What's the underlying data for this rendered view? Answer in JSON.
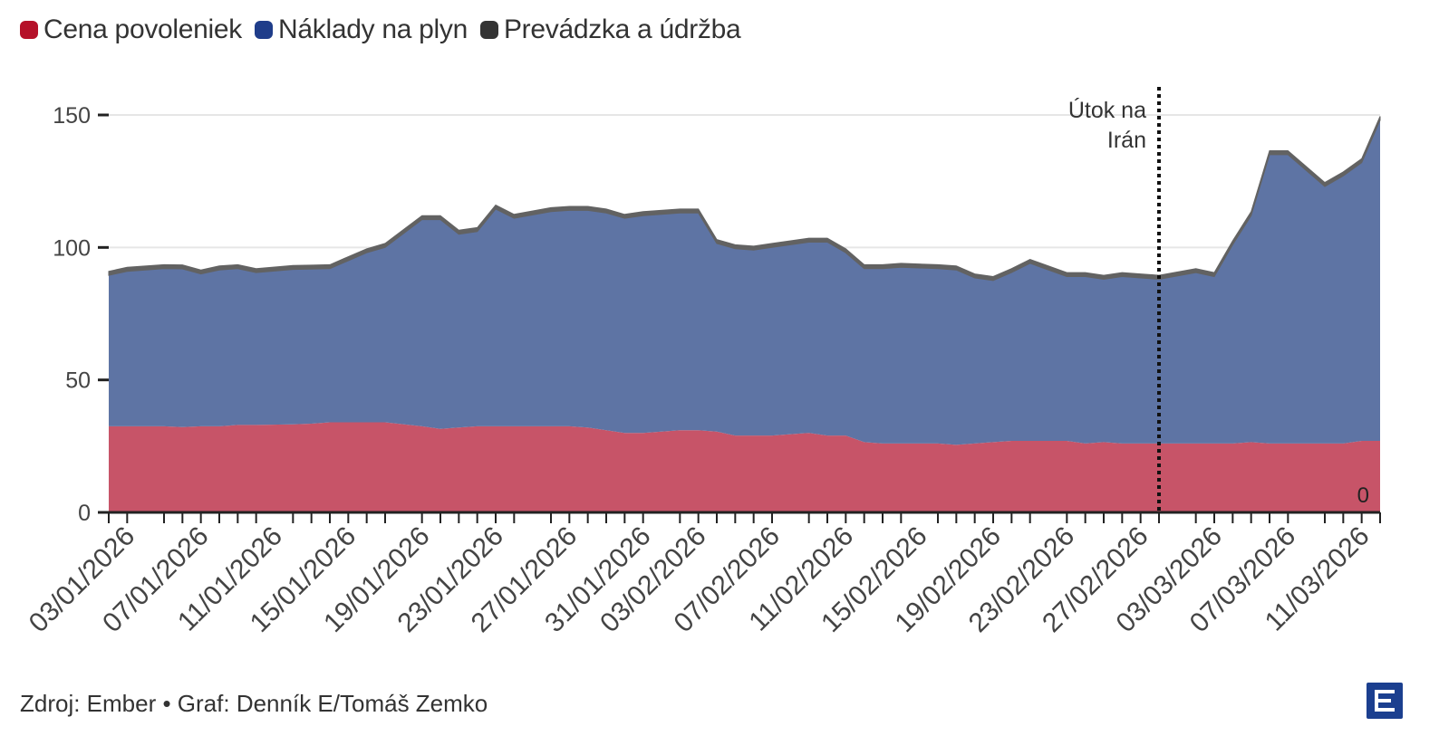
{
  "legend": {
    "items": [
      {
        "label": "Cena povoleniek",
        "color": "#b51129"
      },
      {
        "label": "Náklady na plyn",
        "color": "#1f3d8a"
      },
      {
        "label": "Prevádzka a údržba",
        "color": "#333333"
      }
    ]
  },
  "annotation": {
    "line1": "Útok na",
    "line2": "Irán",
    "date": "28/02/2026"
  },
  "end_label": "0",
  "source": "Zdroj: Ember • Graf: Denník E/Tomáš Zemko",
  "chart_data": {
    "type": "area",
    "stacked": true,
    "ylim": [
      0,
      160
    ],
    "yticks": [
      0,
      50,
      100,
      150
    ],
    "grid": true,
    "legend_position": "top-left",
    "colors": {
      "permits": "#c75468",
      "gas": "#5e74a4",
      "om": "#626262"
    },
    "x": [
      "02/01/2026",
      "03/01/2026",
      "05/01/2026",
      "06/01/2026",
      "07/01/2026",
      "08/01/2026",
      "09/01/2026",
      "10/01/2026",
      "12/01/2026",
      "13/01/2026",
      "14/01/2026",
      "15/01/2026",
      "16/01/2026",
      "17/01/2026",
      "19/01/2026",
      "20/01/2026",
      "21/01/2026",
      "22/01/2026",
      "23/01/2026",
      "24/01/2026",
      "26/01/2026",
      "27/01/2026",
      "28/01/2026",
      "29/01/2026",
      "30/01/2026",
      "31/01/2026",
      "02/02/2026",
      "03/02/2026",
      "04/02/2026",
      "05/02/2026",
      "06/02/2026",
      "07/02/2026",
      "09/02/2026",
      "10/02/2026",
      "11/02/2026",
      "12/02/2026",
      "13/02/2026",
      "14/02/2026",
      "16/02/2026",
      "17/02/2026",
      "18/02/2026",
      "19/02/2026",
      "20/02/2026",
      "21/02/2026",
      "23/02/2026",
      "24/02/2026",
      "25/02/2026",
      "26/02/2026",
      "27/02/2026",
      "28/02/2026",
      "02/03/2026",
      "03/03/2026",
      "04/03/2026",
      "05/03/2026",
      "06/03/2026",
      "07/03/2026",
      "09/03/2026",
      "10/03/2026",
      "11/03/2026",
      "12/03/2026"
    ],
    "xticks": [
      "03/01/2026",
      "07/01/2026",
      "11/01/2026",
      "15/01/2026",
      "19/01/2026",
      "23/01/2026",
      "27/01/2026",
      "31/01/2026",
      "03/02/2026",
      "07/02/2026",
      "11/02/2026",
      "15/02/2026",
      "19/02/2026",
      "23/02/2026",
      "27/02/2026",
      "03/03/2026",
      "07/03/2026",
      "11/03/2026"
    ],
    "series": [
      {
        "name": "Cena povoleniek",
        "values": [
          32.5,
          32.5,
          32.5,
          32.2,
          32.5,
          32.5,
          33,
          33,
          33.2,
          33.5,
          34,
          34,
          34,
          34,
          32.5,
          31.5,
          32,
          32.5,
          32.5,
          32.5,
          32.5,
          32.5,
          32,
          31,
          30,
          30,
          31,
          31,
          30.5,
          29,
          29,
          29,
          30,
          29,
          29,
          26.5,
          26,
          26,
          26,
          25.5,
          26,
          26.5,
          27,
          27,
          27,
          26,
          26.5,
          26,
          26,
          26,
          26,
          26,
          26,
          26.5,
          26,
          26,
          26,
          26,
          27,
          27
        ]
      },
      {
        "name": "Náklady na plyn",
        "values": [
          57,
          58.5,
          59.5,
          59.7,
          57.5,
          59,
          59,
          57.5,
          58.5,
          58.3,
          58,
          61,
          64,
          66,
          78,
          79,
          73,
          73.5,
          82,
          78.5,
          81,
          81.5,
          82,
          82,
          81,
          82,
          82,
          82,
          71,
          70.5,
          70,
          71,
          72,
          73,
          69,
          65.5,
          66,
          66.5,
          66,
          66,
          62.5,
          61,
          63.5,
          67,
          62,
          63,
          61.5,
          63,
          62.5,
          62,
          64.5,
          63,
          75,
          85.5,
          109,
          109,
          97,
          101,
          105,
          121
        ]
      },
      {
        "name": "Prevádzka a údržba",
        "values": [
          1.5,
          1.5,
          1.5,
          1.5,
          1.5,
          1.5,
          1.5,
          1.5,
          1.5,
          1.5,
          1.5,
          1.5,
          1.5,
          1.5,
          1.5,
          1.5,
          1.5,
          1.5,
          1.5,
          1.5,
          1.5,
          1.5,
          1.5,
          1.5,
          1.5,
          1.5,
          1.5,
          1.5,
          1.5,
          1.5,
          1.5,
          1.5,
          1.5,
          1.5,
          1.5,
          1.5,
          1.5,
          1.5,
          1.5,
          1.5,
          1.5,
          1.5,
          1.5,
          1.5,
          1.5,
          1.5,
          1.5,
          1.5,
          1.5,
          1.5,
          1.5,
          1.5,
          1.5,
          1.5,
          1.5,
          1.5,
          1.5,
          1.5,
          1.5,
          1.5
        ]
      }
    ]
  }
}
